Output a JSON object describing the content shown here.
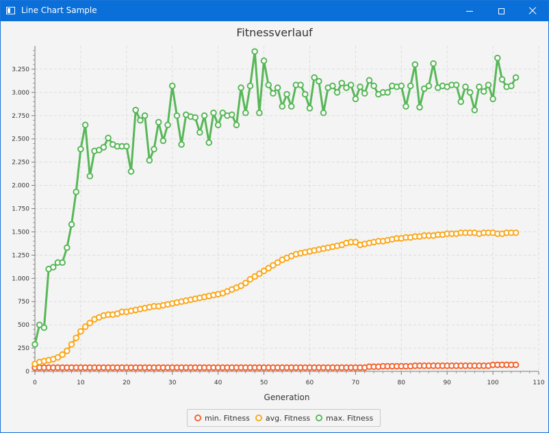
{
  "window": {
    "title": "Line Chart Sample"
  },
  "chart_data": {
    "type": "line",
    "title": "Fitnessverlauf",
    "xlabel": "Generation",
    "ylabel": "",
    "xlim": [
      0,
      110
    ],
    "ylim": [
      0,
      3500
    ],
    "x_ticks": [
      0,
      10,
      20,
      30,
      40,
      50,
      60,
      70,
      80,
      90,
      100,
      110
    ],
    "y_ticks": [
      0,
      250,
      500,
      750,
      1000,
      1250,
      1500,
      1750,
      2000,
      2250,
      2500,
      2750,
      3000,
      3250
    ],
    "x_tick_labels": [
      "0",
      "10",
      "20",
      "30",
      "40",
      "50",
      "60",
      "70",
      "80",
      "90",
      "100",
      "110"
    ],
    "y_tick_labels": [
      "0",
      "250",
      "500",
      "750",
      "1.000",
      "1.250",
      "1.500",
      "1.750",
      "2.000",
      "2.250",
      "2.500",
      "2.750",
      "3.000",
      "3.250"
    ],
    "grid": true,
    "legend": "bottom",
    "series": [
      {
        "name": "min. Fitness",
        "color": "#f3622d",
        "values": [
          40,
          40,
          40,
          40,
          40,
          40,
          40,
          40,
          40,
          40,
          40,
          40,
          40,
          40,
          40,
          40,
          40,
          40,
          40,
          40,
          40,
          40,
          40,
          40,
          40,
          40,
          40,
          40,
          40,
          40,
          40,
          40,
          40,
          40,
          40,
          40,
          40,
          40,
          40,
          40,
          40,
          40,
          40,
          40,
          40,
          40,
          40,
          40,
          40,
          40,
          40,
          40,
          40,
          40,
          40,
          40,
          40,
          40,
          40,
          40,
          40,
          40,
          40,
          40,
          40,
          40,
          40,
          40,
          40,
          40,
          40,
          40,
          40,
          50,
          50,
          50,
          55,
          55,
          55,
          55,
          55,
          55,
          55,
          60,
          60,
          60,
          60,
          60,
          60,
          60,
          60,
          60,
          60,
          60,
          60,
          60,
          60,
          60,
          60,
          60,
          70,
          70,
          70,
          70,
          70,
          70
        ]
      },
      {
        "name": "avg. Fitness",
        "color": "#fba71b",
        "values": [
          80,
          100,
          110,
          120,
          130,
          150,
          180,
          220,
          290,
          360,
          430,
          480,
          520,
          560,
          580,
          600,
          610,
          610,
          620,
          640,
          640,
          650,
          660,
          670,
          680,
          690,
          700,
          700,
          710,
          720,
          730,
          740,
          750,
          760,
          770,
          780,
          790,
          800,
          810,
          820,
          830,
          840,
          860,
          880,
          900,
          920,
          950,
          990,
          1020,
          1050,
          1080,
          1110,
          1140,
          1170,
          1200,
          1220,
          1240,
          1260,
          1270,
          1280,
          1290,
          1300,
          1310,
          1320,
          1330,
          1340,
          1350,
          1360,
          1380,
          1390,
          1390,
          1360,
          1370,
          1380,
          1390,
          1400,
          1400,
          1410,
          1420,
          1430,
          1430,
          1440,
          1440,
          1450,
          1450,
          1460,
          1460,
          1460,
          1470,
          1470,
          1480,
          1480,
          1480,
          1490,
          1490,
          1490,
          1490,
          1480,
          1490,
          1490,
          1490,
          1480,
          1480,
          1490,
          1490,
          1490
        ]
      },
      {
        "name": "max. Fitness",
        "color": "#57b757",
        "values": [
          290,
          500,
          470,
          1100,
          1120,
          1170,
          1170,
          1330,
          1580,
          1930,
          2390,
          2650,
          2100,
          2370,
          2380,
          2410,
          2510,
          2440,
          2420,
          2420,
          2420,
          2150,
          2810,
          2700,
          2750,
          2270,
          2390,
          2680,
          2480,
          2650,
          3070,
          2750,
          2440,
          2760,
          2740,
          2730,
          2570,
          2750,
          2460,
          2780,
          2650,
          2780,
          2750,
          2760,
          2650,
          3050,
          2780,
          3070,
          3440,
          2780,
          3340,
          3080,
          2990,
          3050,
          2850,
          2980,
          2850,
          3080,
          3080,
          2980,
          2830,
          3160,
          3120,
          2780,
          3050,
          3070,
          3000,
          3100,
          3050,
          3080,
          2930,
          3060,
          2990,
          3130,
          3070,
          2980,
          3000,
          3000,
          3070,
          3060,
          3070,
          2850,
          3070,
          3300,
          2840,
          3040,
          3070,
          3310,
          3050,
          3070,
          3060,
          3080,
          3080,
          2900,
          3060,
          3000,
          2810,
          3060,
          3010,
          3080,
          2930,
          3370,
          3140,
          3060,
          3070,
          3160
        ]
      }
    ]
  }
}
